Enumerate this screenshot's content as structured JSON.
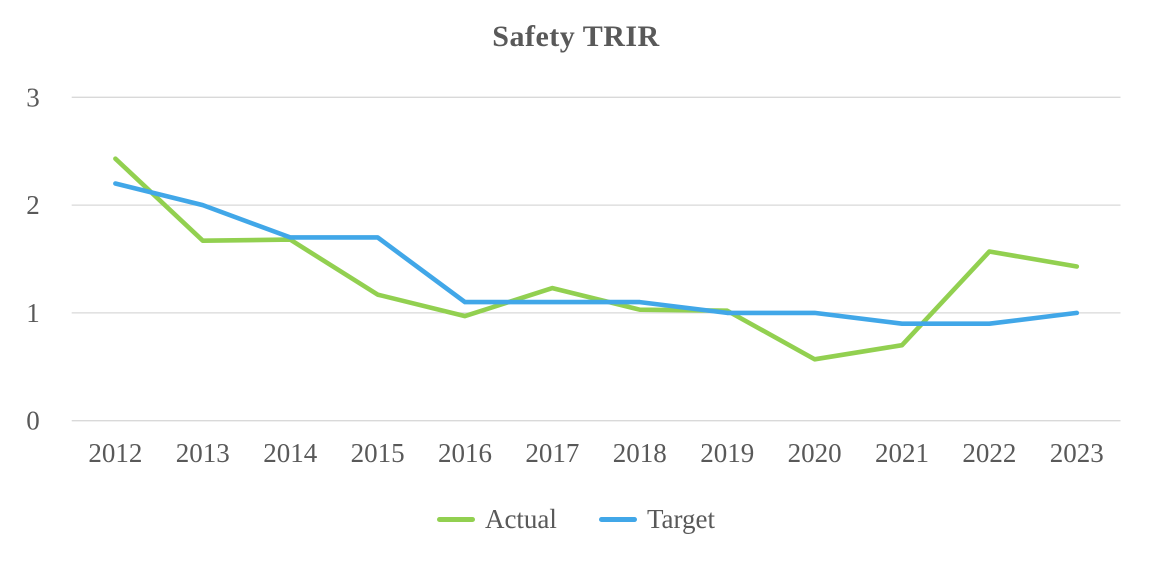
{
  "title": "Safety TRIR",
  "colors": {
    "text": "#595959",
    "gridline": "#d9d9d9",
    "actual_series": "#92d050",
    "target_series": "#41a7e8",
    "background": "#ffffff"
  },
  "chart_data": {
    "type": "line",
    "title": "Safety TRIR",
    "xlabel": "",
    "ylabel": "",
    "categories": [
      "2012",
      "2013",
      "2014",
      "2015",
      "2016",
      "2017",
      "2018",
      "2019",
      "2020",
      "2021",
      "2022",
      "2023"
    ],
    "series": [
      {
        "name": "Actual",
        "color": "#92d050",
        "values": [
          2.43,
          1.67,
          1.68,
          1.17,
          0.97,
          1.23,
          1.03,
          1.02,
          0.57,
          0.7,
          1.57,
          1.43
        ]
      },
      {
        "name": "Target",
        "color": "#41a7e8",
        "values": [
          2.2,
          2.0,
          1.7,
          1.7,
          1.1,
          1.1,
          1.1,
          1.0,
          1.0,
          0.9,
          0.9,
          1.0
        ]
      }
    ],
    "ylim": [
      0,
      3
    ],
    "yticks": [
      0,
      1,
      2,
      3
    ],
    "grid": "horizontal",
    "legend_position": "bottom"
  }
}
